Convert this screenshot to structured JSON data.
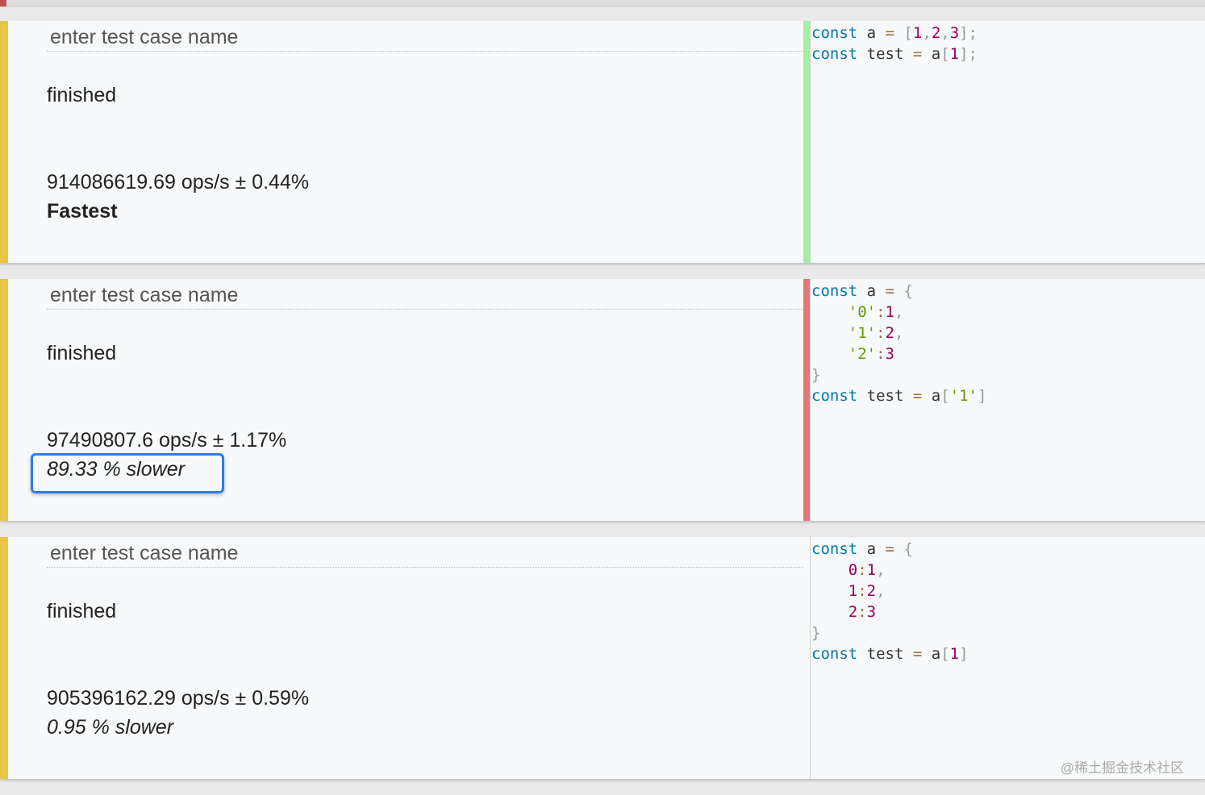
{
  "colors": {
    "accent_bar": "#e9c547",
    "fastest": "#a3f0a0",
    "slower": "#e07a7a",
    "highlight": "#2f7de1"
  },
  "cases": [
    {
      "name_placeholder": "enter test case name",
      "status": "finished",
      "ops": "914086619.69 ops/s ± 0.44%",
      "relative": "Fastest",
      "result": "fastest",
      "code": [
        [
          [
            "kw",
            "const"
          ],
          [
            "",
            "a "
          ],
          [
            "op",
            "="
          ],
          [
            "",
            " "
          ],
          [
            "pun",
            "["
          ],
          [
            "num",
            "1"
          ],
          [
            "pun",
            ","
          ],
          [
            "num",
            "2"
          ],
          [
            "pun",
            ","
          ],
          [
            "num",
            "3"
          ],
          [
            "pun",
            "];"
          ]
        ],
        [
          [
            "kw",
            "const"
          ],
          [
            "",
            "test "
          ],
          [
            "op",
            "="
          ],
          [
            "",
            " a"
          ],
          [
            "pun",
            "["
          ],
          [
            "num",
            "1"
          ],
          [
            "pun",
            "];"
          ]
        ]
      ]
    },
    {
      "name_placeholder": "enter test case name",
      "status": "finished",
      "ops": "97490807.6 ops/s ± 1.17%",
      "relative": "89.33 % slower",
      "result": "slowest",
      "code": [
        [
          [
            "kw",
            "const"
          ],
          [
            "",
            "a "
          ],
          [
            "op",
            "="
          ],
          [
            "",
            " "
          ],
          [
            "pun",
            "{"
          ]
        ],
        [
          [
            "",
            "    "
          ],
          [
            "str",
            "'0'"
          ],
          [
            "op",
            ":"
          ],
          [
            "num",
            "1"
          ],
          [
            "pun",
            ","
          ]
        ],
        [
          [
            "",
            "    "
          ],
          [
            "str",
            "'1'"
          ],
          [
            "op",
            ":"
          ],
          [
            "num",
            "2"
          ],
          [
            "pun",
            ","
          ]
        ],
        [
          [
            "",
            "    "
          ],
          [
            "str",
            "'2'"
          ],
          [
            "op",
            ":"
          ],
          [
            "num",
            "3"
          ]
        ],
        [
          [
            "pun",
            "}"
          ]
        ],
        [
          [
            "kw",
            "const"
          ],
          [
            "",
            "test "
          ],
          [
            "op",
            "="
          ],
          [
            "",
            " a"
          ],
          [
            "pun",
            "["
          ],
          [
            "str",
            "'1'"
          ],
          [
            "pun",
            "]"
          ]
        ]
      ]
    },
    {
      "name_placeholder": "enter test case name",
      "status": "finished",
      "ops": "905396162.29 ops/s ± 0.59%",
      "relative": "0.95 % slower",
      "result": "none",
      "code": [
        [
          [
            "kw",
            "const"
          ],
          [
            "",
            "a "
          ],
          [
            "op",
            "="
          ],
          [
            "",
            " "
          ],
          [
            "pun",
            "{"
          ]
        ],
        [
          [
            "",
            "    "
          ],
          [
            "num",
            "0"
          ],
          [
            "op",
            ":"
          ],
          [
            "num",
            "1"
          ],
          [
            "pun",
            ","
          ]
        ],
        [
          [
            "",
            "    "
          ],
          [
            "num",
            "1"
          ],
          [
            "op",
            ":"
          ],
          [
            "num",
            "2"
          ],
          [
            "pun",
            ","
          ]
        ],
        [
          [
            "",
            "    "
          ],
          [
            "num",
            "2"
          ],
          [
            "op",
            ":"
          ],
          [
            "num",
            "3"
          ]
        ],
        [
          [
            "pun",
            "}"
          ]
        ],
        [
          [
            "kw",
            "const"
          ],
          [
            "",
            "test "
          ],
          [
            "op",
            "="
          ],
          [
            "",
            " a"
          ],
          [
            "pun",
            "["
          ],
          [
            "num",
            "1"
          ],
          [
            "pun",
            "]"
          ]
        ]
      ]
    }
  ],
  "watermark": "@稀土掘金技术社区"
}
